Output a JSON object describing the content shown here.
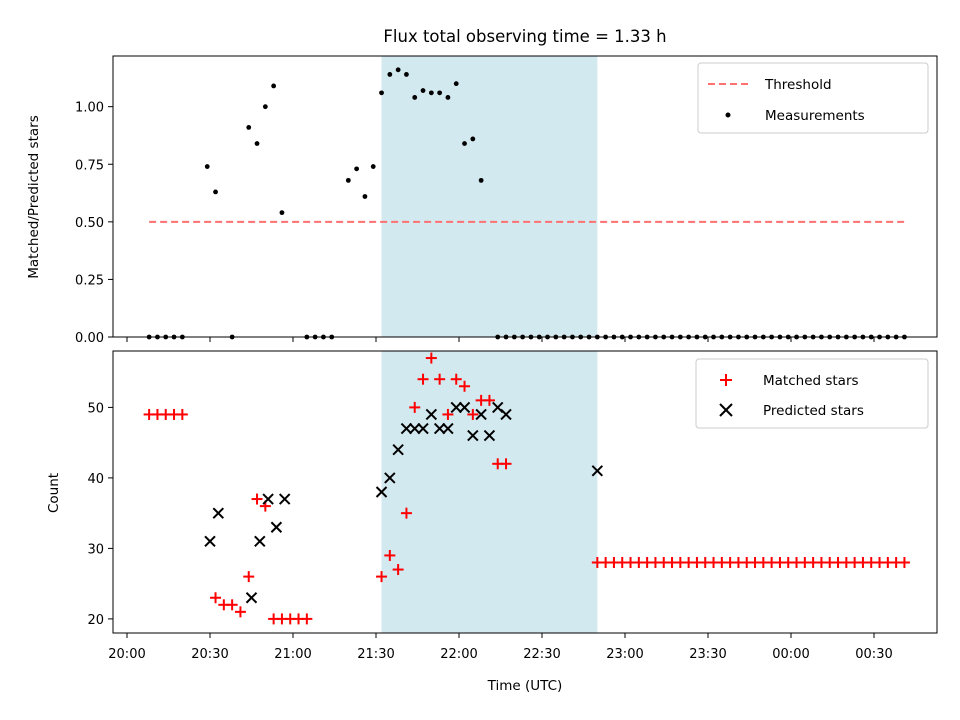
{
  "chart_data": [
    {
      "type": "scatter",
      "title": "Flux total observing time = 1.33 h",
      "ylabel": "Matched/Predicted stars",
      "xlabel": "",
      "ylim": [
        0,
        1.22
      ],
      "yticks": [
        "0.00",
        "0.25",
        "0.50",
        "0.75",
        "1.00"
      ],
      "ytick_values": [
        0,
        0.25,
        0.5,
        0.75,
        1.0
      ],
      "xlim": [
        "20:00",
        "00:47"
      ],
      "grid": false,
      "legend_position": "top-right",
      "shaded_interval": {
        "start": "21:32",
        "end": "22:50",
        "color": "#d3e9f0"
      },
      "threshold": {
        "name": "Threshold",
        "value": 0.5,
        "x_start": "20:08",
        "x_end": "00:42",
        "color": "#ff7070",
        "style": "dashed"
      },
      "series": [
        {
          "name": "Measurements",
          "marker": "dot",
          "color": "#000000",
          "x": [
            "20:08",
            "20:11",
            "20:14",
            "20:17",
            "20:20",
            "20:23",
            "20:26",
            "20:29",
            "20:32",
            "20:35",
            "20:38",
            "20:41",
            "20:44",
            "20:47",
            "20:50",
            "20:53",
            "20:56",
            "20:59",
            "21:02",
            "21:05",
            "21:08",
            "21:11",
            "21:14",
            "21:17",
            "21:20",
            "21:23",
            "21:26",
            "21:29",
            "21:32",
            "21:35",
            "21:38",
            "21:41",
            "21:44",
            "21:47",
            "21:50",
            "21:53",
            "21:56",
            "21:59",
            "22:02",
            "22:05",
            "22:08",
            "22:11",
            "22:14",
            "22:17",
            "22:20",
            "22:23",
            "22:26",
            "22:29",
            "22:32",
            "22:35",
            "22:38",
            "22:41",
            "22:44",
            "22:47",
            "22:50",
            "22:53",
            "22:56",
            "22:59",
            "23:02",
            "23:05",
            "23:08",
            "23:11",
            "23:14",
            "23:17",
            "23:20",
            "23:23",
            "23:26",
            "23:29",
            "23:32",
            "23:35",
            "23:38",
            "23:41",
            "23:44",
            "23:47",
            "23:50",
            "23:53",
            "23:56",
            "23:59",
            "00:02",
            "00:05",
            "00:08",
            "00:11",
            "00:14",
            "00:17",
            "00:20",
            "00:23",
            "00:26",
            "00:29",
            "00:32",
            "00:35",
            "00:38",
            "00:41"
          ],
          "y": [
            0,
            0,
            0,
            0,
            0,
            null,
            null,
            0.74,
            0.63,
            null,
            0,
            null,
            0.91,
            0.84,
            1.0,
            1.09,
            0.54,
            null,
            null,
            0,
            0,
            0,
            0,
            null,
            0.68,
            0.73,
            0.61,
            0.74,
            1.06,
            1.14,
            1.16,
            1.14,
            1.04,
            1.07,
            1.06,
            1.06,
            1.04,
            1.1,
            0.84,
            0.86,
            0.68,
            null,
            0,
            0,
            0,
            0,
            0,
            0,
            0,
            0,
            0,
            0,
            0,
            0,
            0,
            0,
            0,
            0,
            0,
            0,
            0,
            0,
            0,
            0,
            0,
            0,
            0,
            0,
            0,
            0,
            0,
            0,
            0,
            0,
            0,
            0,
            0,
            0,
            0,
            0,
            0,
            0,
            0,
            0,
            0,
            0,
            0,
            0,
            0,
            0,
            0,
            0
          ]
        }
      ]
    },
    {
      "type": "scatter",
      "title": "",
      "xlabel": "Time (UTC)",
      "ylabel": "Count",
      "ylim": [
        18,
        58
      ],
      "yticks": [
        "20",
        "30",
        "40",
        "50"
      ],
      "ytick_values": [
        20,
        30,
        40,
        50
      ],
      "xticks": [
        "20:00",
        "20:30",
        "21:00",
        "21:30",
        "22:00",
        "22:30",
        "23:00",
        "23:30",
        "00:00",
        "00:30"
      ],
      "xlim": [
        "19:55",
        "00:47"
      ],
      "grid": false,
      "legend_position": "top-right",
      "shaded_interval": {
        "start": "21:32",
        "end": "22:50",
        "color": "#d3e9f0"
      },
      "series": [
        {
          "name": "Matched stars",
          "marker": "plus",
          "color": "#ff0000",
          "points": [
            [
              "20:08",
              49
            ],
            [
              "20:11",
              49
            ],
            [
              "20:14",
              49
            ],
            [
              "20:17",
              49
            ],
            [
              "20:20",
              49
            ],
            [
              "20:32",
              23
            ],
            [
              "20:35",
              22
            ],
            [
              "20:38",
              22
            ],
            [
              "20:41",
              21
            ],
            [
              "20:44",
              26
            ],
            [
              "20:47",
              37
            ],
            [
              "20:50",
              36
            ],
            [
              "20:53",
              20
            ],
            [
              "20:56",
              20
            ],
            [
              "20:59",
              20
            ],
            [
              "21:02",
              20
            ],
            [
              "21:05",
              20
            ],
            [
              "21:32",
              26
            ],
            [
              "21:35",
              29
            ],
            [
              "21:38",
              27
            ],
            [
              "21:41",
              35
            ],
            [
              "21:44",
              50
            ],
            [
              "21:47",
              54
            ],
            [
              "21:50",
              57
            ],
            [
              "21:53",
              54
            ],
            [
              "21:56",
              49
            ],
            [
              "21:59",
              54
            ],
            [
              "22:02",
              53
            ],
            [
              "22:05",
              49
            ],
            [
              "22:08",
              51
            ],
            [
              "22:11",
              51
            ],
            [
              "22:14",
              42
            ],
            [
              "22:17",
              42
            ],
            [
              "22:50",
              28
            ],
            [
              "22:53",
              28
            ],
            [
              "22:56",
              28
            ],
            [
              "22:59",
              28
            ],
            [
              "23:02",
              28
            ],
            [
              "23:05",
              28
            ],
            [
              "23:08",
              28
            ],
            [
              "23:11",
              28
            ],
            [
              "23:14",
              28
            ],
            [
              "23:17",
              28
            ],
            [
              "23:20",
              28
            ],
            [
              "23:23",
              28
            ],
            [
              "23:26",
              28
            ],
            [
              "23:29",
              28
            ],
            [
              "23:32",
              28
            ],
            [
              "23:35",
              28
            ],
            [
              "23:38",
              28
            ],
            [
              "23:41",
              28
            ],
            [
              "23:44",
              28
            ],
            [
              "23:47",
              28
            ],
            [
              "23:50",
              28
            ],
            [
              "23:53",
              28
            ],
            [
              "23:56",
              28
            ],
            [
              "23:59",
              28
            ],
            [
              "00:02",
              28
            ],
            [
              "00:05",
              28
            ],
            [
              "00:08",
              28
            ],
            [
              "00:11",
              28
            ],
            [
              "00:14",
              28
            ],
            [
              "00:17",
              28
            ],
            [
              "00:20",
              28
            ],
            [
              "00:23",
              28
            ],
            [
              "00:26",
              28
            ],
            [
              "00:29",
              28
            ],
            [
              "00:32",
              28
            ],
            [
              "00:35",
              28
            ],
            [
              "00:38",
              28
            ],
            [
              "00:41",
              28
            ]
          ]
        },
        {
          "name": "Predicted stars",
          "marker": "x",
          "color": "#000000",
          "points": [
            [
              "20:30",
              31
            ],
            [
              "20:33",
              35
            ],
            [
              "20:45",
              23
            ],
            [
              "20:48",
              31
            ],
            [
              "20:51",
              37
            ],
            [
              "20:54",
              33
            ],
            [
              "20:57",
              37
            ],
            [
              "21:32",
              38
            ],
            [
              "21:35",
              40
            ],
            [
              "21:38",
              44
            ],
            [
              "21:41",
              47
            ],
            [
              "21:44",
              47
            ],
            [
              "21:47",
              47
            ],
            [
              "21:50",
              49
            ],
            [
              "21:53",
              47
            ],
            [
              "21:56",
              47
            ],
            [
              "21:59",
              50
            ],
            [
              "22:02",
              50
            ],
            [
              "22:05",
              46
            ],
            [
              "22:08",
              49
            ],
            [
              "22:11",
              46
            ],
            [
              "22:14",
              50
            ],
            [
              "22:17",
              49
            ],
            [
              "22:50",
              41
            ]
          ]
        }
      ]
    }
  ]
}
